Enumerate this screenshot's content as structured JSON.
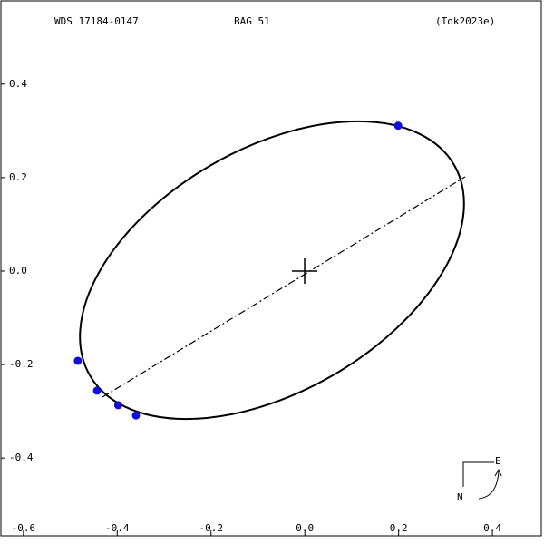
{
  "chart_data": {
    "type": "scatter",
    "title": "WDS 17184-0147",
    "subtitle": "BAG  51",
    "reference": "(Tok2023e)",
    "compass": {
      "east": "E",
      "north": "N"
    },
    "series": [
      {
        "color": "#1010d8",
        "x": [
          0.199,
          -0.484,
          -0.443,
          -0.398,
          -0.36
        ],
        "values": [
          0.311,
          -0.192,
          -0.256,
          -0.287,
          -0.309
        ]
      }
    ],
    "xlim": [
      -0.65,
      0.51
    ],
    "ylim": [
      -0.584,
      0.58
    ],
    "xticks": [
      -0.6,
      -0.4,
      -0.2,
      {
        "value": 0,
        "label": "0.0"
      },
      0.2,
      0.4
    ],
    "yticks": [
      0.4,
      0.2,
      {
        "value": 0,
        "label": "0.0"
      },
      -0.2,
      -0.4
    ]
  }
}
